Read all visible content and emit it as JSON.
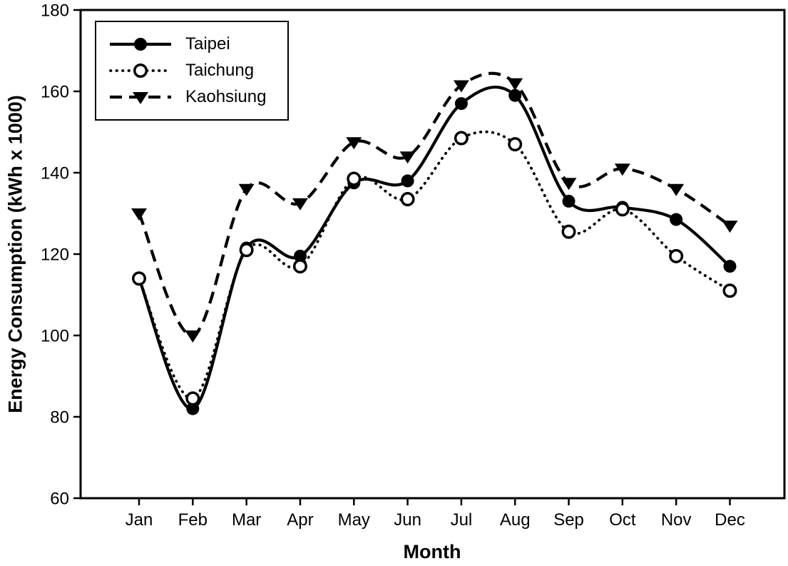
{
  "chart_data": {
    "type": "line",
    "title": "",
    "xlabel": "Month",
    "ylabel": "Energy Consumption (kWh x 1000)",
    "categories": [
      "Jan",
      "Feb",
      "Mar",
      "Apr",
      "May",
      "Jun",
      "Jul",
      "Aug",
      "Sep",
      "Oct",
      "Nov",
      "Dec"
    ],
    "ylim": [
      60,
      180
    ],
    "yticks": [
      60,
      80,
      100,
      120,
      140,
      160,
      180
    ],
    "grid": false,
    "legend_position": "top-left",
    "line_smoothing": "spline",
    "series": [
      {
        "name": "Taipei",
        "line_style": "solid",
        "marker": "filled-circle",
        "color": "#000000",
        "values": [
          114,
          82,
          121.5,
          119.5,
          137.5,
          138,
          157,
          159,
          133,
          131.5,
          128.5,
          117
        ]
      },
      {
        "name": "Taichung",
        "line_style": "dotted",
        "marker": "open-circle",
        "color": "#000000",
        "values": [
          114,
          84.5,
          121,
          117,
          138.5,
          133.5,
          148.5,
          147,
          125.5,
          131,
          119.5,
          111
        ]
      },
      {
        "name": "Kaohsiung",
        "line_style": "dashed",
        "marker": "filled-triangle-down",
        "color": "#000000",
        "values": [
          130,
          100,
          136,
          132.5,
          147.5,
          144,
          161.5,
          162,
          137.5,
          141,
          136,
          127
        ]
      }
    ]
  },
  "colors": {
    "background": "#ffffff",
    "axis": "#000000",
    "text": "#000000"
  }
}
